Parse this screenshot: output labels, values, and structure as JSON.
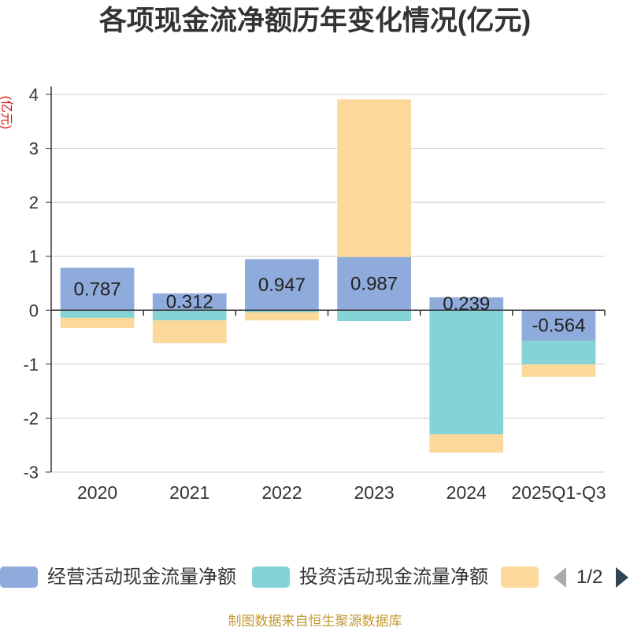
{
  "chart_data": {
    "type": "bar",
    "stacked": true,
    "title": "各项现金流净额历年变化情况(亿元)",
    "xlabel": "",
    "ylabel": "(亿元)",
    "categories": [
      "2020",
      "2021",
      "2022",
      "2023",
      "2024",
      "2025Q1-Q3"
    ],
    "ylim": [
      -3,
      4
    ],
    "yticks": [
      4,
      3,
      2,
      1,
      0,
      -1,
      -2,
      -3
    ],
    "grid": true,
    "legend": "bottom",
    "series": [
      {
        "name": "经营活动现金流量净额",
        "color": "#8fabdb",
        "show_labels": true,
        "values": [
          0.787,
          0.312,
          0.947,
          0.987,
          0.239,
          -0.564
        ]
      },
      {
        "name": "投资活动现金流量净额",
        "color": "#86d3d7",
        "show_labels": false,
        "values": [
          -0.14,
          -0.19,
          -0.04,
          -0.2,
          -2.3,
          -0.44
        ]
      },
      {
        "name": "",
        "color": "#fdd89b",
        "show_labels": false,
        "values": [
          -0.19,
          -0.42,
          -0.15,
          2.92,
          -0.34,
          -0.23
        ]
      }
    ]
  },
  "legend": {
    "page": "1/2"
  },
  "footer": {
    "text": "制图数据来自恒生聚源数据库"
  }
}
